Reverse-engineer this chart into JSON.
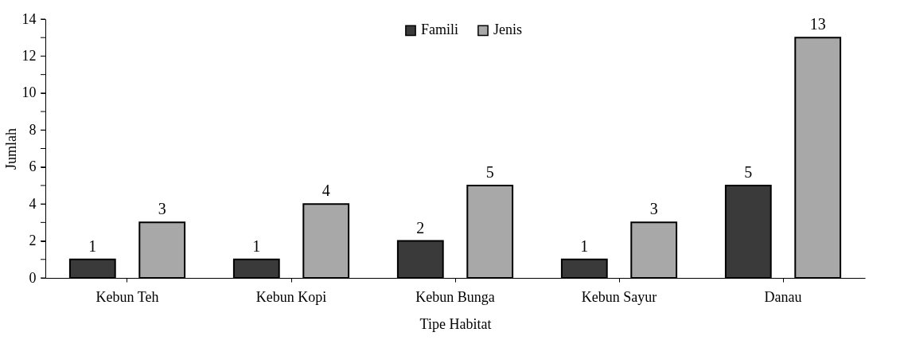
{
  "chart_data": {
    "type": "bar",
    "xlabel": "Tipe Habitat",
    "ylabel": "Jumlah",
    "categories": [
      "Kebun Teh",
      "Kebun Kopi",
      "Kebun Bunga",
      "Kebun Sayur",
      "Danau"
    ],
    "series": [
      {
        "name": "Famili",
        "color": "#3a3a3a",
        "values": [
          1,
          1,
          2,
          1,
          5
        ]
      },
      {
        "name": "Jenis",
        "color": "#a8a8a8",
        "values": [
          3,
          4,
          5,
          3,
          13
        ]
      }
    ],
    "ylim": [
      0,
      14
    ],
    "yticks": [
      0,
      {
        "value": 1,
        "label": null
      },
      2,
      {
        "value": 3,
        "label": null
      },
      4,
      {
        "value": 5,
        "label": null
      },
      6,
      {
        "value": 7,
        "label": null
      },
      8,
      {
        "value": 9,
        "label": null
      },
      10,
      {
        "value": 11,
        "label": null
      },
      12,
      {
        "value": 13,
        "label": null
      },
      14
    ],
    "data_labels": true,
    "grid": false,
    "legend": "top"
  }
}
